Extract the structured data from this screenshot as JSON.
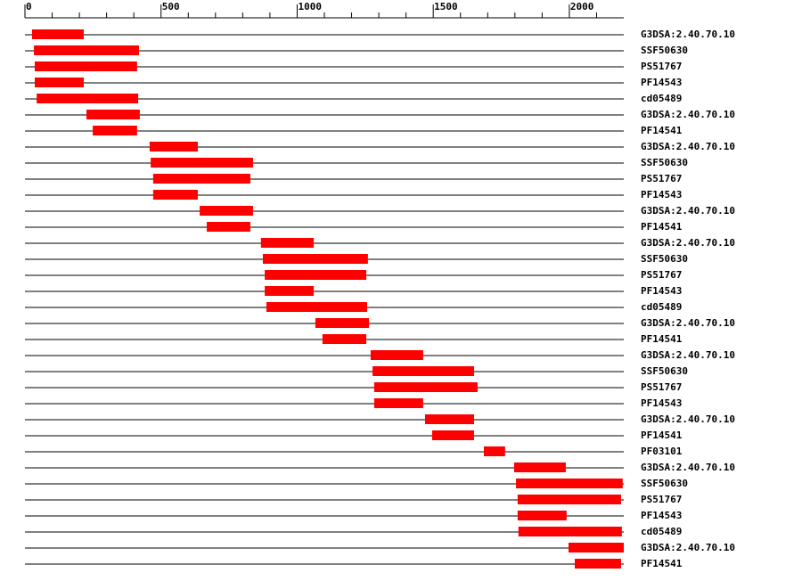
{
  "chart_data": {
    "type": "range",
    "categories": [
      "G3DSA:2.40.70.10",
      "SSF50630",
      "PS51767",
      "PF14543",
      "cd05489",
      "G3DSA:2.40.70.10",
      "PF14541",
      "G3DSA:2.40.70.10",
      "SSF50630",
      "PS51767",
      "PF14543",
      "G3DSA:2.40.70.10",
      "PF14541",
      "G3DSA:2.40.70.10",
      "SSF50630",
      "PS51767",
      "PF14543",
      "cd05489",
      "G3DSA:2.40.70.10",
      "PF14541",
      "G3DSA:2.40.70.10",
      "SSF50630",
      "PS51767",
      "PF14543",
      "G3DSA:2.40.70.10",
      "PF14541",
      "PF03101",
      "G3DSA:2.40.70.10",
      "SSF50630",
      "PS51767",
      "PF14543",
      "cd05489",
      "G3DSA:2.40.70.10",
      "PF14541"
    ],
    "start": [
      26,
      33,
      36,
      36,
      43,
      226,
      249,
      458,
      462,
      471,
      471,
      642,
      668,
      867,
      874,
      881,
      881,
      887,
      1067,
      1093,
      1270,
      1277,
      1283,
      1283,
      1470,
      1496,
      1686,
      1797,
      1804,
      1810,
      1810,
      1813,
      1997,
      2020
    ],
    "end": [
      216,
      419,
      412,
      216,
      416,
      422,
      412,
      635,
      838,
      828,
      635,
      838,
      828,
      1061,
      1260,
      1254,
      1061,
      1257,
      1264,
      1254,
      1463,
      1650,
      1663,
      1463,
      1650,
      1650,
      1764,
      1987,
      2196,
      2190,
      1990,
      2193,
      2200,
      2190
    ],
    "color": "#ff0000",
    "xlim": [
      0,
      2200
    ],
    "xticks": [
      0,
      500,
      1000,
      1500,
      2000
    ],
    "minor_xticks": [
      100,
      200,
      300,
      400,
      600,
      700,
      800,
      900,
      1100,
      1200,
      1300,
      1400,
      1600,
      1700,
      1800,
      1900,
      2100
    ]
  }
}
